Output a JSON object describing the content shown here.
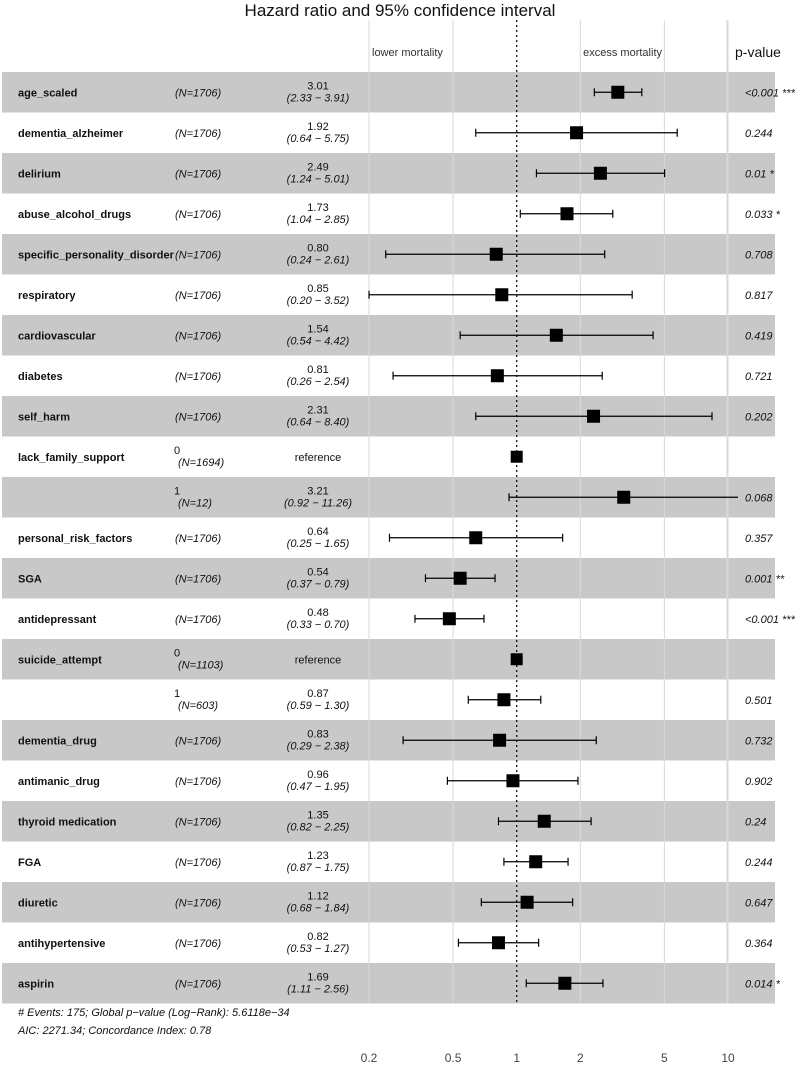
{
  "chart_data": {
    "type": "forest",
    "title": "Hazard ratio and 95% confidence interval",
    "direction_labels": {
      "left": "lower mortality",
      "right": "excess mortality"
    },
    "pvalue_header": "p-value",
    "x_axis": {
      "scale": "log",
      "range": [
        0.2,
        10
      ],
      "ticks": [
        0.2,
        0.5,
        1,
        2,
        5,
        10
      ],
      "tick_labels": [
        "0.2",
        "0.5",
        "1",
        "2",
        "5",
        "10"
      ],
      "reference_line": 1
    },
    "rows": [
      {
        "variable": "age_scaled",
        "level": "",
        "n": "(N=1706)",
        "hr": 3.01,
        "hr_label": "3.01",
        "ci_label": "(2.33 − 3.91)",
        "lo": 2.33,
        "hi": 3.91,
        "p": "<0.001",
        "sig": "***",
        "shaded": true
      },
      {
        "variable": "dementia_alzheimer",
        "level": "",
        "n": "(N=1706)",
        "hr": 1.92,
        "hr_label": "1.92",
        "ci_label": "(0.64 − 5.75)",
        "lo": 0.64,
        "hi": 5.75,
        "p": "0.244",
        "sig": "",
        "shaded": false
      },
      {
        "variable": "delirium",
        "level": "",
        "n": "(N=1706)",
        "hr": 2.49,
        "hr_label": "2.49",
        "ci_label": "(1.24 − 5.01)",
        "lo": 1.24,
        "hi": 5.01,
        "p": "0.01",
        "sig": "*",
        "shaded": true
      },
      {
        "variable": "abuse_alcohol_drugs",
        "level": "",
        "n": "(N=1706)",
        "hr": 1.73,
        "hr_label": "1.73",
        "ci_label": "(1.04 − 2.85)",
        "lo": 1.04,
        "hi": 2.85,
        "p": "0.033",
        "sig": "*",
        "shaded": false
      },
      {
        "variable": "specific_personality_disorder",
        "level": "",
        "n": "(N=1706)",
        "hr": 0.8,
        "hr_label": "0.80",
        "ci_label": "(0.24 − 2.61)",
        "lo": 0.24,
        "hi": 2.61,
        "p": "0.708",
        "sig": "",
        "shaded": true
      },
      {
        "variable": "respiratory",
        "level": "",
        "n": "(N=1706)",
        "hr": 0.85,
        "hr_label": "0.85",
        "ci_label": "(0.20 − 3.52)",
        "lo": 0.2,
        "hi": 3.52,
        "p": "0.817",
        "sig": "",
        "shaded": false
      },
      {
        "variable": "cardiovascular",
        "level": "",
        "n": "(N=1706)",
        "hr": 1.54,
        "hr_label": "1.54",
        "ci_label": "(0.54 − 4.42)",
        "lo": 0.54,
        "hi": 4.42,
        "p": "0.419",
        "sig": "",
        "shaded": true
      },
      {
        "variable": "diabetes",
        "level": "",
        "n": "(N=1706)",
        "hr": 0.81,
        "hr_label": "0.81",
        "ci_label": "(0.26 − 2.54)",
        "lo": 0.26,
        "hi": 2.54,
        "p": "0.721",
        "sig": "",
        "shaded": false
      },
      {
        "variable": "self_harm",
        "level": "",
        "n": "(N=1706)",
        "hr": 2.31,
        "hr_label": "2.31",
        "ci_label": "(0.64 − 8.40)",
        "lo": 0.64,
        "hi": 8.4,
        "p": "0.202",
        "sig": "",
        "shaded": true
      },
      {
        "variable": "lack_family_support",
        "level": "0",
        "n": "(N=1694)",
        "hr": 1,
        "hr_label": "reference",
        "ci_label": "",
        "lo": null,
        "hi": null,
        "p": "",
        "sig": "",
        "shaded": false,
        "reference": true
      },
      {
        "variable": "",
        "level": "1",
        "n": "(N=12)",
        "hr": 3.21,
        "hr_label": "3.21",
        "ci_label": "(0.92 − 11.26)",
        "lo": 0.92,
        "hi": 11.26,
        "p": "0.068",
        "sig": "",
        "shaded": true
      },
      {
        "variable": "personal_risk_factors",
        "level": "",
        "n": "(N=1706)",
        "hr": 0.64,
        "hr_label": "0.64",
        "ci_label": "(0.25 − 1.65)",
        "lo": 0.25,
        "hi": 1.65,
        "p": "0.357",
        "sig": "",
        "shaded": false
      },
      {
        "variable": "SGA",
        "level": "",
        "n": "(N=1706)",
        "hr": 0.54,
        "hr_label": "0.54",
        "ci_label": "(0.37 − 0.79)",
        "lo": 0.37,
        "hi": 0.79,
        "p": "0.001",
        "sig": "**",
        "shaded": true
      },
      {
        "variable": "antidepressant",
        "level": "",
        "n": "(N=1706)",
        "hr": 0.48,
        "hr_label": "0.48",
        "ci_label": "(0.33 − 0.70)",
        "lo": 0.33,
        "hi": 0.7,
        "p": "<0.001",
        "sig": "***",
        "shaded": false
      },
      {
        "variable": "suicide_attempt",
        "level": "0",
        "n": "(N=1103)",
        "hr": 1,
        "hr_label": "reference",
        "ci_label": "",
        "lo": null,
        "hi": null,
        "p": "",
        "sig": "",
        "shaded": true,
        "reference": true
      },
      {
        "variable": "",
        "level": "1",
        "n": "(N=603)",
        "hr": 0.87,
        "hr_label": "0.87",
        "ci_label": "(0.59 − 1.30)",
        "lo": 0.59,
        "hi": 1.3,
        "p": "0.501",
        "sig": "",
        "shaded": false
      },
      {
        "variable": "dementia_drug",
        "level": "",
        "n": "(N=1706)",
        "hr": 0.83,
        "hr_label": "0.83",
        "ci_label": "(0.29 − 2.38)",
        "lo": 0.29,
        "hi": 2.38,
        "p": "0.732",
        "sig": "",
        "shaded": true
      },
      {
        "variable": "antimanic_drug",
        "level": "",
        "n": "(N=1706)",
        "hr": 0.96,
        "hr_label": "0.96",
        "ci_label": "(0.47 − 1.95)",
        "lo": 0.47,
        "hi": 1.95,
        "p": "0.902",
        "sig": "",
        "shaded": false
      },
      {
        "variable": "thyroid medication",
        "level": "",
        "n": "(N=1706)",
        "hr": 1.35,
        "hr_label": "1.35",
        "ci_label": "(0.82 − 2.25)",
        "lo": 0.82,
        "hi": 2.25,
        "p": "0.24",
        "sig": "",
        "shaded": true
      },
      {
        "variable": "FGA",
        "level": "",
        "n": "(N=1706)",
        "hr": 1.23,
        "hr_label": "1.23",
        "ci_label": "(0.87 − 1.75)",
        "lo": 0.87,
        "hi": 1.75,
        "p": "0.244",
        "sig": "",
        "shaded": false
      },
      {
        "variable": "diuretic",
        "level": "",
        "n": "(N=1706)",
        "hr": 1.12,
        "hr_label": "1.12",
        "ci_label": "(0.68 − 1.84)",
        "lo": 0.68,
        "hi": 1.84,
        "p": "0.647",
        "sig": "",
        "shaded": true
      },
      {
        "variable": "antihypertensive",
        "level": "",
        "n": "(N=1706)",
        "hr": 0.82,
        "hr_label": "0.82",
        "ci_label": "(0.53 − 1.27)",
        "lo": 0.53,
        "hi": 1.27,
        "p": "0.364",
        "sig": "",
        "shaded": false
      },
      {
        "variable": "aspirin",
        "level": "",
        "n": "(N=1706)",
        "hr": 1.69,
        "hr_label": "1.69",
        "ci_label": "(1.11 − 2.56)",
        "lo": 1.11,
        "hi": 2.56,
        "p": "0.014",
        "sig": "*",
        "shaded": true
      }
    ],
    "footer": [
      "# Events: 175; Global p−value (Log−Rank): 5.6118e−34",
      "AIC: 2271.34; Concordance Index: 0.78"
    ],
    "colors": {
      "shaded_row": "#c8c8c8",
      "marker": "#000000",
      "gridline": "#d9d9d9"
    }
  }
}
